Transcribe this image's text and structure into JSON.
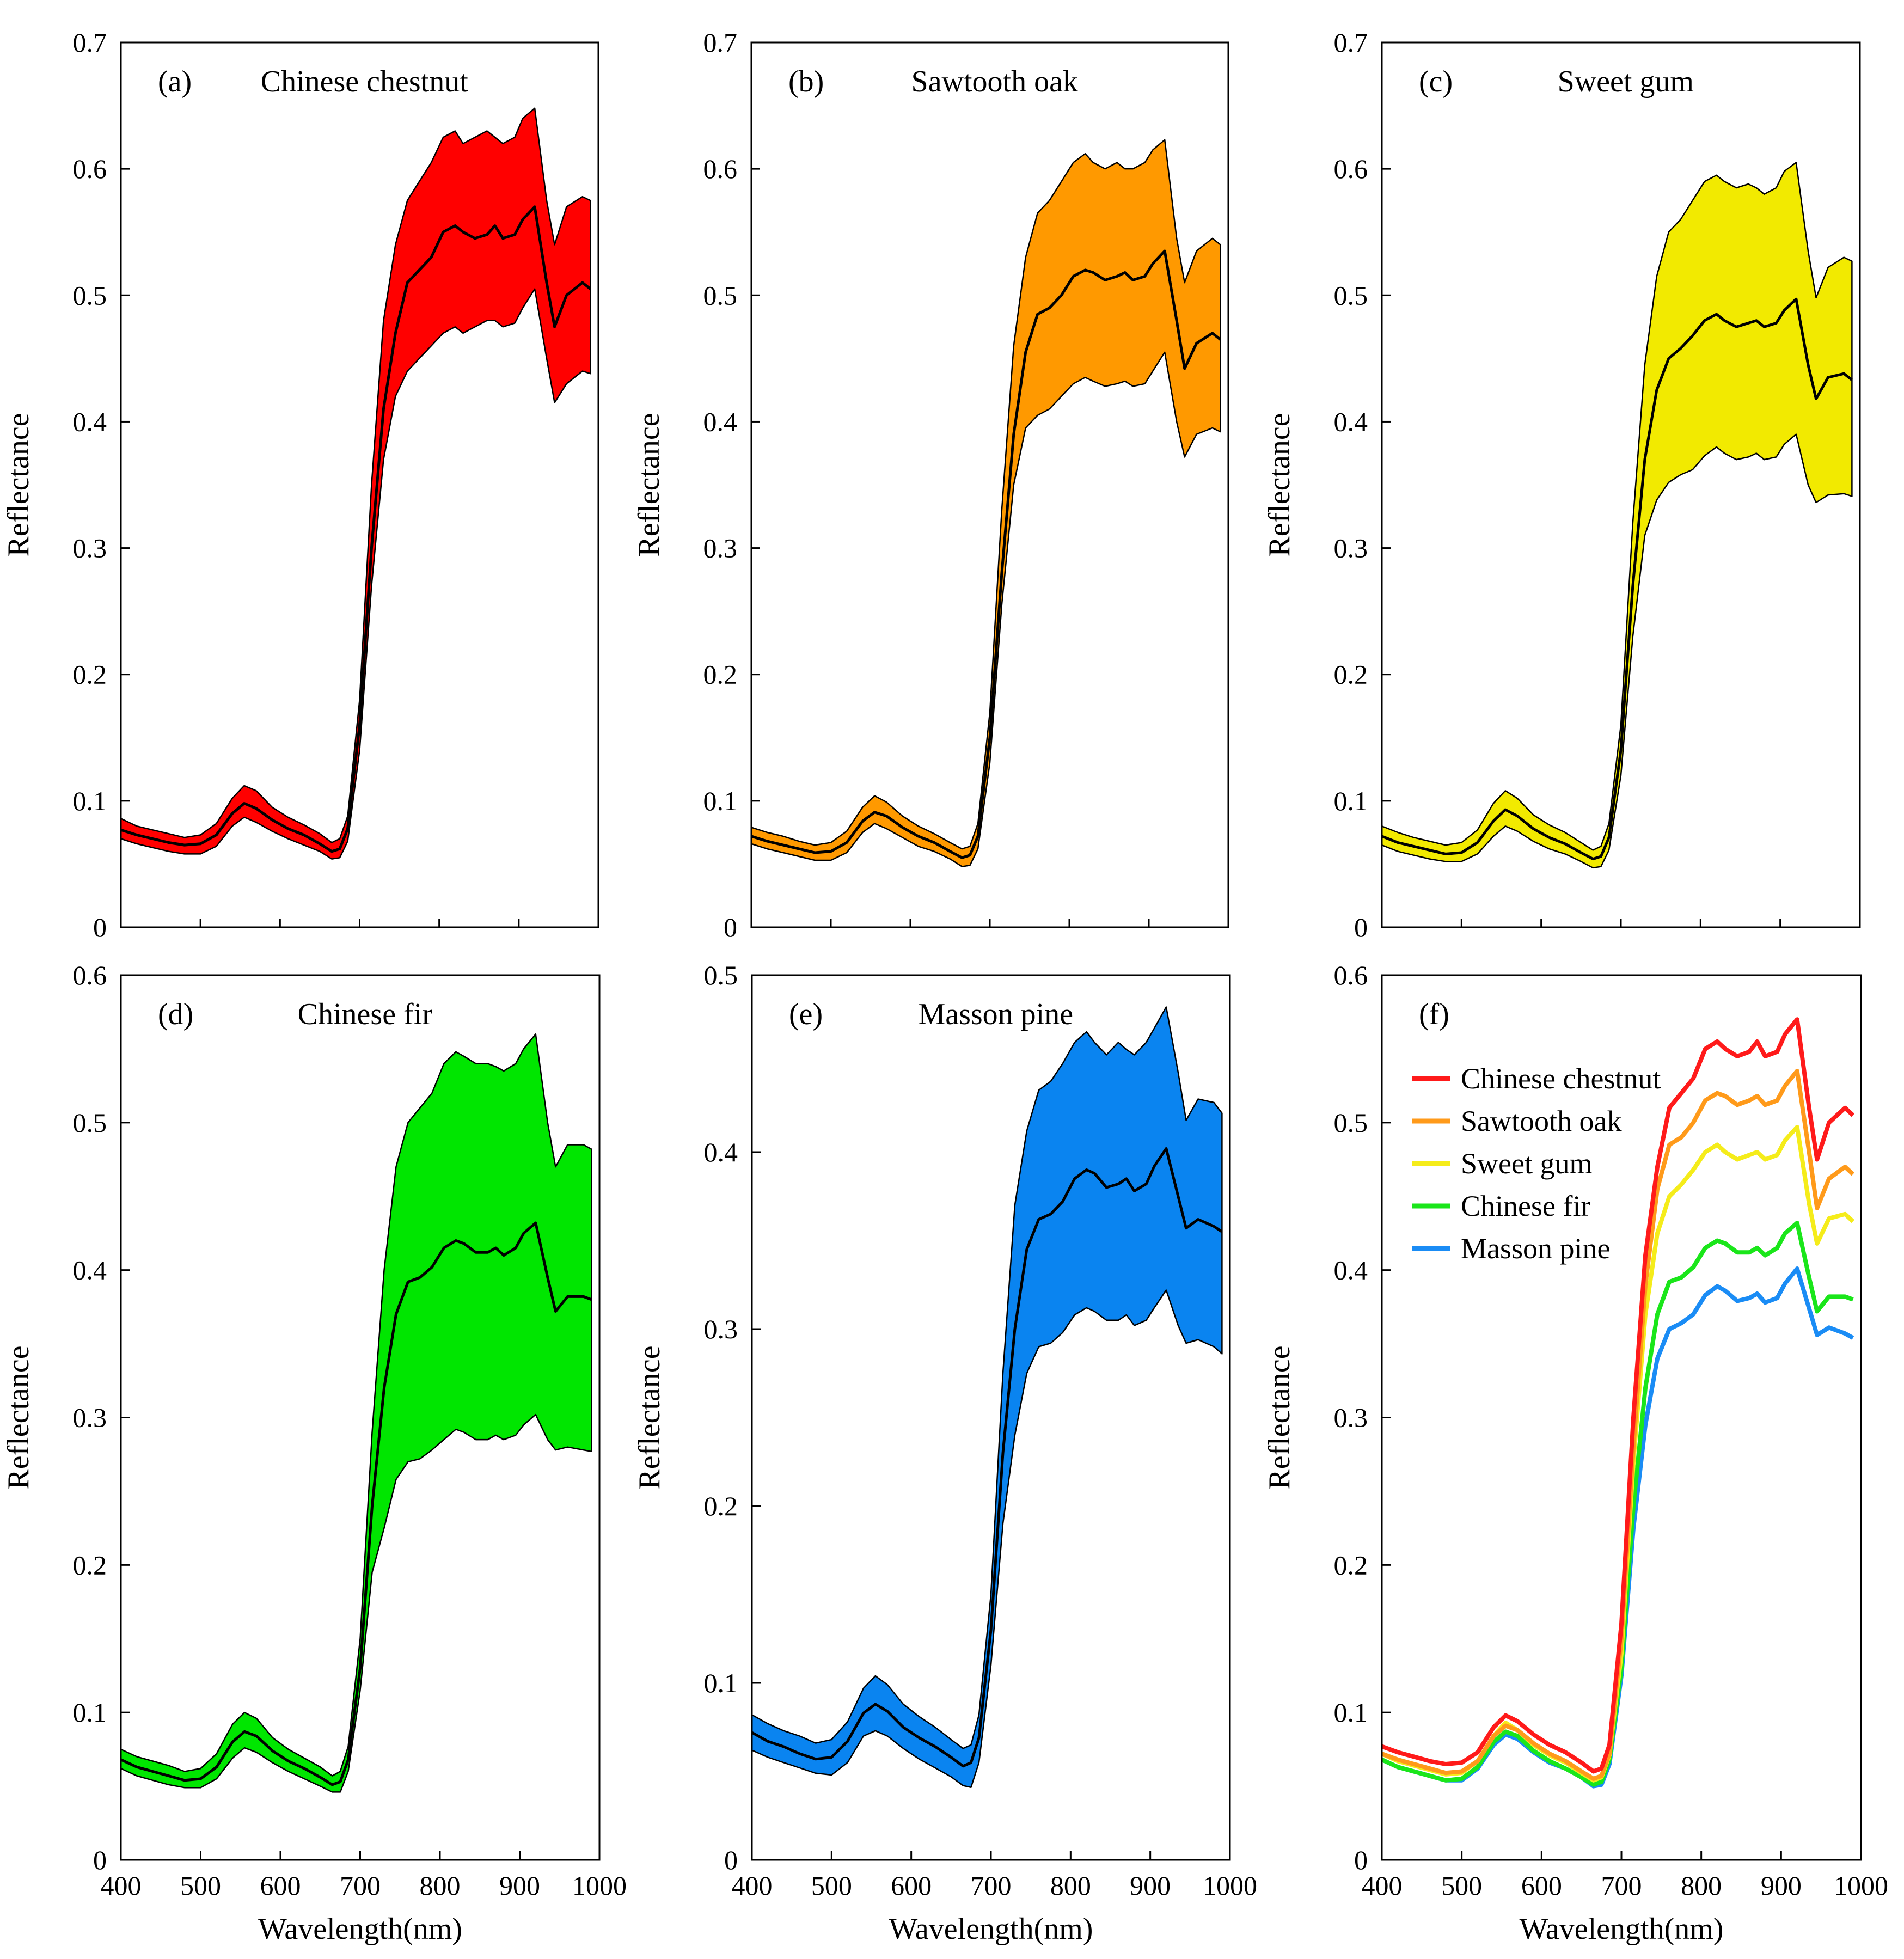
{
  "chart_data": [
    {
      "type": "line",
      "panel": "(a)",
      "title": "Chinese chestnut",
      "xlabel": "",
      "ylabel": "Reflectance",
      "xlim": [
        400,
        1000
      ],
      "ylim": [
        0,
        0.7
      ],
      "xticks": [],
      "yticks": [
        "0",
        "0.1",
        "0.2",
        "0.3",
        "0.4",
        "0.5",
        "0.6",
        "0.7"
      ],
      "band_color": "#ff0000",
      "x": [
        400,
        420,
        440,
        460,
        480,
        500,
        520,
        540,
        555,
        570,
        590,
        610,
        630,
        650,
        665,
        675,
        685,
        700,
        715,
        730,
        745,
        760,
        775,
        790,
        805,
        820,
        830,
        845,
        860,
        870,
        880,
        895,
        905,
        920,
        935,
        945,
        960,
        980,
        990
      ],
      "mean": [
        0.077,
        0.073,
        0.07,
        0.067,
        0.065,
        0.066,
        0.073,
        0.09,
        0.098,
        0.094,
        0.085,
        0.078,
        0.073,
        0.066,
        0.06,
        0.062,
        0.078,
        0.16,
        0.3,
        0.41,
        0.47,
        0.51,
        0.52,
        0.53,
        0.55,
        0.555,
        0.55,
        0.545,
        0.548,
        0.555,
        0.545,
        0.548,
        0.56,
        0.57,
        0.51,
        0.475,
        0.5,
        0.51,
        0.505
      ],
      "upper": [
        0.086,
        0.08,
        0.077,
        0.074,
        0.071,
        0.073,
        0.082,
        0.102,
        0.112,
        0.108,
        0.095,
        0.087,
        0.081,
        0.074,
        0.067,
        0.07,
        0.088,
        0.18,
        0.35,
        0.48,
        0.54,
        0.575,
        0.59,
        0.605,
        0.625,
        0.63,
        0.62,
        0.625,
        0.63,
        0.625,
        0.62,
        0.625,
        0.64,
        0.648,
        0.575,
        0.54,
        0.57,
        0.578,
        0.575
      ],
      "lower": [
        0.07,
        0.066,
        0.063,
        0.06,
        0.058,
        0.058,
        0.064,
        0.08,
        0.087,
        0.083,
        0.076,
        0.07,
        0.065,
        0.06,
        0.054,
        0.055,
        0.068,
        0.14,
        0.27,
        0.37,
        0.42,
        0.44,
        0.45,
        0.46,
        0.47,
        0.475,
        0.47,
        0.475,
        0.48,
        0.48,
        0.475,
        0.478,
        0.49,
        0.505,
        0.45,
        0.415,
        0.43,
        0.44,
        0.438
      ]
    },
    {
      "type": "line",
      "panel": "(b)",
      "title": "Sawtooth oak",
      "xlabel": "",
      "ylabel": "Reflectance",
      "xlim": [
        400,
        1000
      ],
      "ylim": [
        0,
        0.7
      ],
      "xticks": [],
      "yticks": [
        "0",
        "0.1",
        "0.2",
        "0.3",
        "0.4",
        "0.5",
        "0.6",
        "0.7"
      ],
      "band_color": "#ff9900",
      "x": [
        400,
        420,
        440,
        460,
        480,
        500,
        520,
        540,
        555,
        570,
        590,
        610,
        630,
        650,
        665,
        675,
        685,
        700,
        715,
        730,
        745,
        760,
        775,
        790,
        805,
        820,
        830,
        845,
        860,
        870,
        880,
        895,
        905,
        920,
        935,
        945,
        960,
        980,
        990
      ],
      "mean": [
        0.072,
        0.068,
        0.065,
        0.062,
        0.059,
        0.06,
        0.067,
        0.084,
        0.091,
        0.088,
        0.079,
        0.072,
        0.067,
        0.06,
        0.055,
        0.057,
        0.072,
        0.15,
        0.28,
        0.39,
        0.455,
        0.485,
        0.49,
        0.5,
        0.515,
        0.52,
        0.518,
        0.512,
        0.515,
        0.518,
        0.512,
        0.515,
        0.525,
        0.535,
        0.48,
        0.442,
        0.462,
        0.47,
        0.465
      ],
      "upper": [
        0.079,
        0.075,
        0.072,
        0.068,
        0.065,
        0.067,
        0.076,
        0.095,
        0.104,
        0.099,
        0.088,
        0.08,
        0.074,
        0.067,
        0.062,
        0.064,
        0.082,
        0.17,
        0.33,
        0.46,
        0.53,
        0.565,
        0.575,
        0.59,
        0.605,
        0.612,
        0.605,
        0.6,
        0.605,
        0.6,
        0.6,
        0.605,
        0.615,
        0.623,
        0.545,
        0.51,
        0.535,
        0.545,
        0.54
      ],
      "lower": [
        0.066,
        0.062,
        0.059,
        0.056,
        0.053,
        0.053,
        0.059,
        0.075,
        0.082,
        0.078,
        0.071,
        0.064,
        0.06,
        0.054,
        0.048,
        0.049,
        0.062,
        0.13,
        0.255,
        0.35,
        0.395,
        0.405,
        0.41,
        0.42,
        0.43,
        0.435,
        0.432,
        0.428,
        0.43,
        0.432,
        0.428,
        0.43,
        0.44,
        0.455,
        0.4,
        0.372,
        0.39,
        0.395,
        0.392
      ]
    },
    {
      "type": "line",
      "panel": "(c)",
      "title": "Sweet gum",
      "xlabel": "",
      "ylabel": "Reflectance",
      "xlim": [
        400,
        1000
      ],
      "ylim": [
        0,
        0.7
      ],
      "xticks": [],
      "yticks": [
        "0",
        "0.1",
        "0.2",
        "0.3",
        "0.4",
        "0.5",
        "0.6",
        "0.7"
      ],
      "band_color": "#f2ea00",
      "x": [
        400,
        420,
        440,
        460,
        480,
        500,
        520,
        540,
        555,
        570,
        590,
        610,
        630,
        650,
        665,
        675,
        685,
        700,
        715,
        730,
        745,
        760,
        775,
        790,
        805,
        820,
        830,
        845,
        860,
        870,
        880,
        895,
        905,
        920,
        935,
        945,
        960,
        980,
        990
      ],
      "mean": [
        0.072,
        0.067,
        0.064,
        0.061,
        0.058,
        0.059,
        0.067,
        0.084,
        0.093,
        0.088,
        0.078,
        0.071,
        0.066,
        0.059,
        0.054,
        0.056,
        0.071,
        0.14,
        0.27,
        0.37,
        0.425,
        0.45,
        0.458,
        0.468,
        0.48,
        0.485,
        0.48,
        0.475,
        0.478,
        0.48,
        0.475,
        0.478,
        0.488,
        0.497,
        0.445,
        0.418,
        0.435,
        0.438,
        0.433
      ],
      "upper": [
        0.08,
        0.075,
        0.071,
        0.068,
        0.065,
        0.067,
        0.077,
        0.098,
        0.108,
        0.102,
        0.089,
        0.081,
        0.075,
        0.067,
        0.061,
        0.064,
        0.082,
        0.16,
        0.32,
        0.445,
        0.515,
        0.55,
        0.56,
        0.575,
        0.59,
        0.595,
        0.59,
        0.585,
        0.588,
        0.585,
        0.58,
        0.585,
        0.598,
        0.605,
        0.535,
        0.498,
        0.522,
        0.53,
        0.527
      ],
      "lower": [
        0.065,
        0.06,
        0.057,
        0.054,
        0.052,
        0.052,
        0.058,
        0.072,
        0.08,
        0.076,
        0.068,
        0.062,
        0.058,
        0.052,
        0.047,
        0.048,
        0.061,
        0.12,
        0.23,
        0.31,
        0.338,
        0.352,
        0.358,
        0.362,
        0.373,
        0.38,
        0.375,
        0.37,
        0.372,
        0.375,
        0.37,
        0.372,
        0.382,
        0.39,
        0.35,
        0.336,
        0.342,
        0.343,
        0.341
      ]
    },
    {
      "type": "line",
      "panel": "(d)",
      "title": "Chinese fir",
      "xlabel": "Wavelength(nm)",
      "ylabel": "Reflectance",
      "xlim": [
        400,
        1000
      ],
      "ylim": [
        0,
        0.6
      ],
      "xticks": [
        "400",
        "500",
        "600",
        "700",
        "800",
        "900",
        "1000"
      ],
      "yticks": [
        "0",
        "0.1",
        "0.2",
        "0.3",
        "0.4",
        "0.5",
        "0.6"
      ],
      "band_color": "#00e600",
      "x": [
        400,
        420,
        440,
        460,
        480,
        500,
        520,
        540,
        555,
        570,
        590,
        610,
        630,
        650,
        665,
        675,
        685,
        700,
        715,
        730,
        745,
        760,
        775,
        790,
        805,
        820,
        830,
        845,
        860,
        870,
        880,
        895,
        905,
        920,
        935,
        945,
        960,
        980,
        990
      ],
      "mean": [
        0.068,
        0.063,
        0.06,
        0.057,
        0.054,
        0.055,
        0.063,
        0.08,
        0.087,
        0.084,
        0.074,
        0.067,
        0.062,
        0.056,
        0.051,
        0.053,
        0.068,
        0.13,
        0.24,
        0.32,
        0.37,
        0.392,
        0.395,
        0.402,
        0.415,
        0.42,
        0.418,
        0.412,
        0.412,
        0.415,
        0.41,
        0.415,
        0.425,
        0.432,
        0.395,
        0.372,
        0.382,
        0.382,
        0.38
      ],
      "upper": [
        0.075,
        0.07,
        0.067,
        0.064,
        0.06,
        0.062,
        0.072,
        0.092,
        0.1,
        0.096,
        0.083,
        0.075,
        0.069,
        0.063,
        0.057,
        0.06,
        0.077,
        0.15,
        0.29,
        0.4,
        0.47,
        0.5,
        0.51,
        0.52,
        0.54,
        0.548,
        0.545,
        0.54,
        0.54,
        0.538,
        0.535,
        0.54,
        0.55,
        0.56,
        0.5,
        0.47,
        0.485,
        0.485,
        0.482
      ],
      "lower": [
        0.062,
        0.057,
        0.054,
        0.051,
        0.049,
        0.049,
        0.055,
        0.069,
        0.076,
        0.073,
        0.066,
        0.06,
        0.055,
        0.05,
        0.046,
        0.046,
        0.06,
        0.115,
        0.195,
        0.225,
        0.258,
        0.27,
        0.272,
        0.278,
        0.285,
        0.292,
        0.29,
        0.285,
        0.285,
        0.288,
        0.285,
        0.288,
        0.295,
        0.302,
        0.285,
        0.278,
        0.28,
        0.278,
        0.277
      ]
    },
    {
      "type": "line",
      "panel": "(e)",
      "title": "Masson pine",
      "xlabel": "Wavelength(nm)",
      "ylabel": "Reflectance",
      "xlim": [
        400,
        1000
      ],
      "ylim": [
        0,
        0.5
      ],
      "xticks": [
        "400",
        "500",
        "600",
        "700",
        "800",
        "900",
        "1000"
      ],
      "yticks": [
        "0",
        "0.1",
        "0.2",
        "0.3",
        "0.4",
        "0.5"
      ],
      "band_color": "#0a84f0",
      "x": [
        400,
        420,
        440,
        460,
        480,
        500,
        520,
        540,
        555,
        570,
        590,
        610,
        630,
        650,
        665,
        675,
        685,
        700,
        715,
        730,
        745,
        760,
        775,
        790,
        805,
        820,
        830,
        845,
        860,
        870,
        880,
        895,
        905,
        920,
        935,
        945,
        960,
        980,
        990
      ],
      "mean": [
        0.072,
        0.067,
        0.064,
        0.06,
        0.057,
        0.058,
        0.067,
        0.083,
        0.088,
        0.084,
        0.075,
        0.069,
        0.064,
        0.058,
        0.053,
        0.055,
        0.069,
        0.13,
        0.23,
        0.3,
        0.345,
        0.362,
        0.365,
        0.372,
        0.385,
        0.39,
        0.388,
        0.38,
        0.382,
        0.385,
        0.378,
        0.382,
        0.392,
        0.402,
        0.375,
        0.357,
        0.362,
        0.358,
        0.355
      ],
      "upper": [
        0.082,
        0.077,
        0.073,
        0.07,
        0.066,
        0.068,
        0.078,
        0.097,
        0.104,
        0.099,
        0.088,
        0.081,
        0.075,
        0.068,
        0.063,
        0.065,
        0.082,
        0.15,
        0.275,
        0.37,
        0.412,
        0.435,
        0.44,
        0.45,
        0.462,
        0.468,
        0.462,
        0.455,
        0.462,
        0.458,
        0.455,
        0.462,
        0.47,
        0.482,
        0.445,
        0.418,
        0.43,
        0.428,
        0.422
      ],
      "lower": [
        0.062,
        0.058,
        0.055,
        0.052,
        0.049,
        0.048,
        0.055,
        0.07,
        0.073,
        0.07,
        0.063,
        0.057,
        0.052,
        0.047,
        0.042,
        0.041,
        0.055,
        0.11,
        0.19,
        0.24,
        0.275,
        0.29,
        0.292,
        0.298,
        0.308,
        0.312,
        0.31,
        0.305,
        0.305,
        0.308,
        0.302,
        0.305,
        0.312,
        0.322,
        0.302,
        0.292,
        0.294,
        0.29,
        0.286
      ]
    },
    {
      "type": "line",
      "panel": "(f)",
      "title": "",
      "xlabel": "Wavelength(nm)",
      "ylabel": "Reflectance",
      "xlim": [
        400,
        1000
      ],
      "ylim": [
        0,
        0.6
      ],
      "xticks": [
        "400",
        "500",
        "600",
        "700",
        "800",
        "900",
        "1000"
      ],
      "yticks": [
        "0",
        "0.1",
        "0.2",
        "0.3",
        "0.4",
        "0.5",
        "0.6"
      ],
      "legend_position": "top-left",
      "x": [
        400,
        420,
        440,
        460,
        480,
        500,
        520,
        540,
        555,
        570,
        590,
        610,
        630,
        650,
        665,
        675,
        685,
        700,
        715,
        730,
        745,
        760,
        775,
        790,
        805,
        820,
        830,
        845,
        860,
        870,
        880,
        895,
        905,
        920,
        935,
        945,
        960,
        980,
        990
      ],
      "series": [
        {
          "name": "Chinese chestnut",
          "color": "#ff1a1a",
          "values": [
            0.077,
            0.073,
            0.07,
            0.067,
            0.065,
            0.066,
            0.073,
            0.09,
            0.098,
            0.094,
            0.085,
            0.078,
            0.073,
            0.066,
            0.06,
            0.062,
            0.078,
            0.16,
            0.3,
            0.41,
            0.47,
            0.51,
            0.52,
            0.53,
            0.55,
            0.555,
            0.55,
            0.545,
            0.548,
            0.555,
            0.545,
            0.548,
            0.56,
            0.57,
            0.51,
            0.475,
            0.5,
            0.51,
            0.505
          ]
        },
        {
          "name": "Sawtooth oak",
          "color": "#ff9a1a",
          "values": [
            0.072,
            0.068,
            0.065,
            0.062,
            0.059,
            0.06,
            0.067,
            0.084,
            0.091,
            0.088,
            0.079,
            0.072,
            0.067,
            0.06,
            0.055,
            0.057,
            0.072,
            0.15,
            0.28,
            0.39,
            0.455,
            0.485,
            0.49,
            0.5,
            0.515,
            0.52,
            0.518,
            0.512,
            0.515,
            0.518,
            0.512,
            0.515,
            0.525,
            0.535,
            0.48,
            0.442,
            0.462,
            0.47,
            0.465
          ]
        },
        {
          "name": "Sweet gum",
          "color": "#f5ec1a",
          "values": [
            0.072,
            0.067,
            0.064,
            0.061,
            0.058,
            0.059,
            0.067,
            0.084,
            0.093,
            0.088,
            0.078,
            0.071,
            0.066,
            0.059,
            0.054,
            0.056,
            0.071,
            0.14,
            0.27,
            0.37,
            0.425,
            0.45,
            0.458,
            0.468,
            0.48,
            0.485,
            0.48,
            0.475,
            0.478,
            0.48,
            0.475,
            0.478,
            0.488,
            0.497,
            0.445,
            0.418,
            0.435,
            0.438,
            0.433
          ]
        },
        {
          "name": "Chinese fir",
          "color": "#1ae61a",
          "values": [
            0.068,
            0.063,
            0.06,
            0.057,
            0.054,
            0.055,
            0.063,
            0.08,
            0.087,
            0.084,
            0.074,
            0.067,
            0.062,
            0.056,
            0.051,
            0.053,
            0.068,
            0.13,
            0.24,
            0.32,
            0.37,
            0.392,
            0.395,
            0.402,
            0.415,
            0.42,
            0.418,
            0.412,
            0.412,
            0.415,
            0.41,
            0.415,
            0.425,
            0.432,
            0.395,
            0.372,
            0.382,
            0.382,
            0.38
          ]
        },
        {
          "name": "Masson pine",
          "color": "#1a8cf5",
          "values": [
            0.068,
            0.063,
            0.06,
            0.057,
            0.054,
            0.054,
            0.062,
            0.078,
            0.085,
            0.082,
            0.073,
            0.066,
            0.062,
            0.056,
            0.05,
            0.051,
            0.065,
            0.125,
            0.225,
            0.295,
            0.34,
            0.36,
            0.364,
            0.37,
            0.383,
            0.389,
            0.386,
            0.379,
            0.381,
            0.384,
            0.378,
            0.381,
            0.391,
            0.401,
            0.374,
            0.356,
            0.361,
            0.357,
            0.354
          ]
        }
      ]
    }
  ]
}
